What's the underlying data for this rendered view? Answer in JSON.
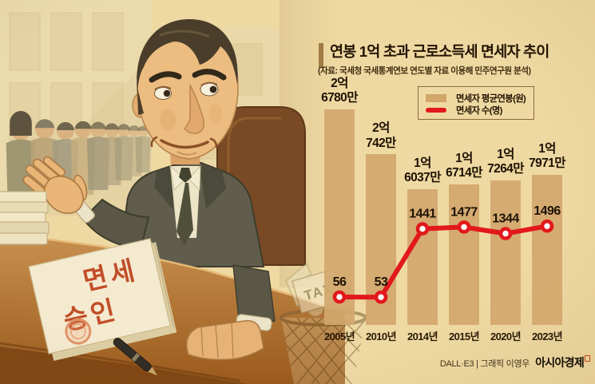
{
  "page": {
    "background_color": "#efd9a2"
  },
  "header": {
    "title": "연봉 1억 초과 근로소득세 면세자 추이",
    "subtitle": "(자료: 국세청 국세통계연보 연도별 자료 이용해 민주연구원 분석)"
  },
  "legend": {
    "items": [
      {
        "label": "면세자 평균연봉(원)",
        "swatch": "bar",
        "color": "#d2a76b"
      },
      {
        "label": "면세자 수(명)",
        "swatch": "line",
        "color": "#e2191c"
      }
    ]
  },
  "chart_data": {
    "type": "bar+line",
    "title": "연봉 1억 초과 근로소득세 면세자 추이",
    "categories": [
      "2005년",
      "2010년",
      "2014년",
      "2015년",
      "2020년",
      "2023년"
    ],
    "series": [
      {
        "name": "면세자 평균연봉(원)",
        "type": "bar",
        "color": "#d2a76b",
        "values_eok_won": [
          2.678,
          2.0742,
          1.6037,
          1.6714,
          1.7264,
          1.7971
        ],
        "value_labels": [
          [
            "2억",
            "6780만"
          ],
          [
            "2억",
            "742만"
          ],
          [
            "1억",
            "6037만"
          ],
          [
            "1억",
            "6714만"
          ],
          [
            "1억",
            "7264만"
          ],
          [
            "1억",
            "7971만"
          ]
        ]
      },
      {
        "name": "면세자 수(명)",
        "type": "line",
        "color": "#e2191c",
        "values": [
          56,
          53,
          1441,
          1477,
          1344,
          1496
        ]
      }
    ],
    "grid": false,
    "legend_position": "top-right"
  },
  "illustration": {
    "approval_document": {
      "line1": "면세",
      "line2": "승인"
    },
    "wastebasket_label": "TAX"
  },
  "footer": {
    "credit": "DALL·E3 | 그래픽 이영우",
    "brand": "아시아경제"
  }
}
